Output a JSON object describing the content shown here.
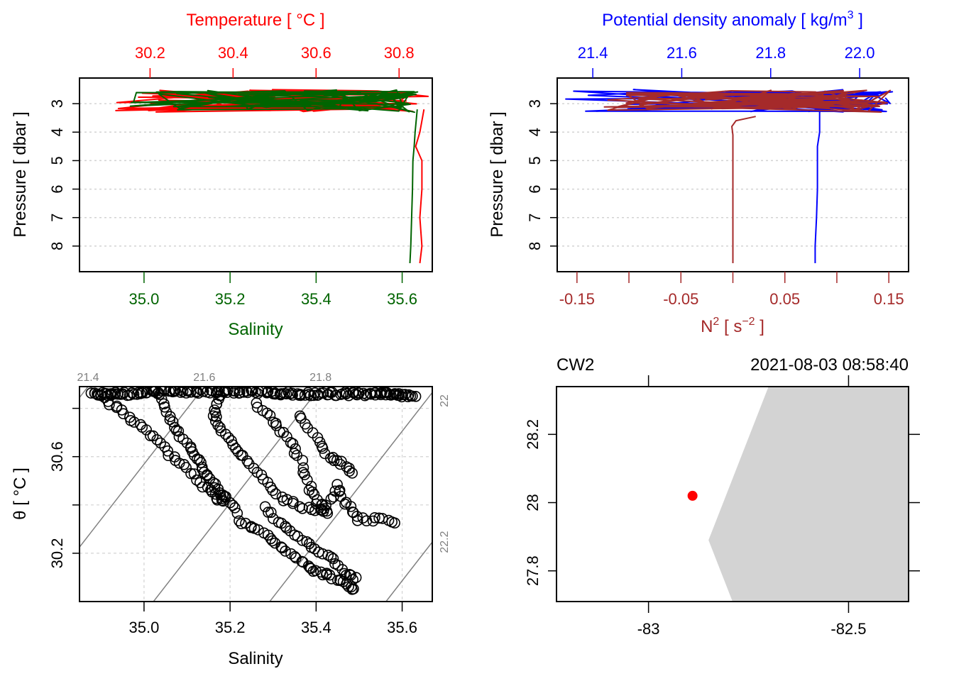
{
  "colors": {
    "temperature": "#ff0000",
    "salinity": "#006400",
    "density": "#0000ff",
    "n2": "#a52a2a",
    "grid": "#d3d3d3",
    "isopycnal": "#808080",
    "land": "#d3d3d3",
    "station": "#ff0000",
    "axis": "#000000"
  },
  "chart_data": [
    {
      "id": "salinity-temperature-profile",
      "type": "line",
      "top_axis": {
        "label": "Temperature [ °C ]",
        "ticks": [
          "30.2",
          "30.4",
          "30.6",
          "30.8"
        ],
        "range": [
          30.03,
          30.88
        ]
      },
      "bottom_axis": {
        "label": "Salinity",
        "ticks": [
          "35.0",
          "35.2",
          "35.4",
          "35.6"
        ],
        "range": [
          34.85,
          35.67
        ]
      },
      "left_axis": {
        "label": "Pressure [ dbar ]",
        "ticks": [
          "3",
          "4",
          "5",
          "6",
          "7",
          "8"
        ],
        "range": [
          2.1,
          8.9
        ],
        "reversed": true
      },
      "grid": true,
      "series": [
        {
          "name": "Temperature",
          "axis": "top",
          "surface": {
            "p_range": [
              2.5,
              3.3
            ],
            "x_range": [
              30.0,
              30.88
            ]
          },
          "deep": {
            "p": [
              3.2,
              4.0,
              4.5,
              5.0,
              6.0,
              7.0,
              8.0,
              8.6
            ],
            "x": [
              30.86,
              30.85,
              30.84,
              30.855,
              30.855,
              30.85,
              30.855,
              30.85
            ]
          }
        },
        {
          "name": "Salinity",
          "axis": "bottom",
          "surface": {
            "p_range": [
              2.5,
              3.3
            ],
            "x_range": [
              34.88,
              35.64
            ]
          },
          "deep": {
            "p": [
              3.2,
              4.0,
              4.5,
              5.0,
              6.0,
              7.0,
              8.0,
              8.6
            ],
            "x": [
              35.635,
              35.63,
              35.628,
              35.625,
              35.624,
              35.622,
              35.62,
              35.618
            ]
          }
        }
      ]
    },
    {
      "id": "density-n2-profile",
      "type": "line",
      "top_axis": {
        "label": "Potential density anomaly [ kg/m3 ]",
        "label_main": "Potential density anomaly [ kg/m",
        "label_sup": "3",
        "label_end": " ]",
        "ticks": [
          "21.4",
          "21.6",
          "21.8",
          "22.0"
        ],
        "range": [
          21.32,
          22.11
        ]
      },
      "bottom_axis": {
        "label": "N2 [ s-2 ]",
        "label_n": "N",
        "label_n_sup": "2",
        "label_mid": " [ s",
        "label_unit_sup": "−2",
        "label_end": " ]",
        "ticks": [
          "-0.15",
          "-0.05",
          "0.05",
          "0.15"
        ],
        "minor_ticks": [
          -0.1,
          0.0,
          0.1
        ],
        "range": [
          -0.169,
          0.169
        ]
      },
      "left_axis": {
        "label": "Pressure [ dbar ]",
        "ticks": [
          "3",
          "4",
          "5",
          "6",
          "7",
          "8"
        ],
        "range": [
          2.1,
          8.9
        ],
        "reversed": true
      },
      "grid": true,
      "series": [
        {
          "name": "Potential density anomaly",
          "axis": "top",
          "surface": {
            "p_range": [
              2.5,
              3.3
            ],
            "x_range": [
              21.33,
              22.08
            ]
          },
          "deep": {
            "p": [
              3.2,
              4.0,
              4.5,
              5.0,
              6.0,
              7.0,
              8.0,
              8.6
            ],
            "x": [
              21.91,
              21.91,
              21.905,
              21.905,
              21.905,
              21.903,
              21.9,
              21.9
            ]
          }
        },
        {
          "name": "N2",
          "axis": "bottom",
          "surface": {
            "p_range": [
              2.5,
              3.3
            ],
            "x_range": [
              -0.155,
              0.155
            ]
          },
          "deep": {
            "p": [
              3.45,
              3.6,
              3.8,
              4.1,
              4.5,
              5.0,
              6.0,
              7.0,
              8.0,
              8.6
            ],
            "x": [
              0.022,
              0.003,
              -0.001,
              0.0,
              0.0,
              0.0,
              0.0,
              0.0,
              0.0,
              0.0
            ]
          }
        }
      ]
    },
    {
      "id": "ts-diagram",
      "type": "scatter",
      "xlabel": "Salinity",
      "ylabel": "θ [ °C ]",
      "x_ticks": [
        "35.0",
        "35.2",
        "35.4",
        "35.6"
      ],
      "y_ticks": [
        "30.2",
        "30.6"
      ],
      "xlim": [
        34.85,
        35.67
      ],
      "ylim": [
        30.0,
        30.89
      ],
      "grid": true,
      "grid_y": [
        30.2,
        30.4,
        30.6,
        30.8
      ],
      "isopycnals": [
        {
          "label": "21.4",
          "value": 21.4,
          "label_pos": "top"
        },
        {
          "label": "21.6",
          "value": 21.6,
          "label_pos": "top"
        },
        {
          "label": "21.8",
          "value": 21.8,
          "label_pos": "top"
        },
        {
          "label": "22",
          "value": 22.0,
          "label_pos": "right"
        },
        {
          "label": "22.2",
          "value": 22.2,
          "label_pos": "right"
        }
      ],
      "isopycnal_model": {
        "ref_salinity": 35.0,
        "ref_theta": 30.6,
        "ref_sigma": 21.59,
        "dsigma_ds": 0.74,
        "dsigma_dt": -0.323
      },
      "tracks": [
        {
          "s": [
            34.9,
            34.94,
            34.98,
            35.02,
            35.06,
            35.1,
            35.14,
            35.17,
            35.19
          ],
          "t": [
            30.85,
            30.8,
            30.74,
            30.68,
            30.61,
            30.55,
            30.48,
            30.43,
            30.41
          ]
        },
        {
          "s": [
            35.04,
            35.06,
            35.08,
            35.11,
            35.13,
            35.15,
            35.17,
            35.19,
            35.22
          ],
          "t": [
            30.85,
            30.77,
            30.7,
            30.63,
            30.57,
            30.52,
            30.46,
            30.43,
            30.35
          ]
        },
        {
          "s": [
            35.18,
            35.16,
            35.17,
            35.2,
            35.23,
            35.27,
            35.31,
            35.35,
            35.4,
            35.43
          ],
          "t": [
            30.86,
            30.8,
            30.73,
            30.66,
            30.6,
            30.52,
            30.44,
            30.4,
            30.38,
            30.37
          ]
        },
        {
          "s": [
            35.26,
            35.3,
            35.33,
            35.36,
            35.38,
            35.4,
            35.42,
            35.45,
            35.47,
            35.5,
            35.55,
            35.59
          ],
          "t": [
            30.82,
            30.75,
            30.68,
            30.6,
            30.5,
            30.42,
            30.38,
            30.48,
            30.4,
            30.34,
            30.34,
            30.33
          ]
        },
        {
          "s": [
            35.22,
            35.26,
            35.3,
            35.34,
            35.38,
            35.41,
            35.44,
            35.47,
            35.49
          ],
          "t": [
            30.33,
            30.3,
            30.25,
            30.2,
            30.15,
            30.12,
            30.1,
            30.07,
            30.04
          ]
        },
        {
          "s": [
            35.28,
            35.32,
            35.36,
            35.4,
            35.44,
            35.47,
            35.5
          ],
          "t": [
            30.39,
            30.32,
            30.27,
            30.22,
            30.17,
            30.11,
            30.09
          ]
        },
        {
          "s": [
            35.36,
            35.4,
            35.43,
            35.46,
            35.49
          ],
          "t": [
            30.77,
            30.68,
            30.6,
            30.57,
            30.53
          ]
        },
        {
          "s": [
            34.88,
            34.95,
            35.05,
            35.15,
            35.25,
            35.35,
            35.45,
            35.55,
            35.63
          ],
          "t": [
            30.86,
            30.86,
            30.87,
            30.87,
            30.87,
            30.86,
            30.86,
            30.86,
            30.85
          ]
        }
      ]
    },
    {
      "id": "station-map",
      "type": "scatter",
      "station_label": "CW2",
      "timestamp": "2021-08-03 08:58:40",
      "x_ticks": [
        "-83",
        "-82.5"
      ],
      "y_ticks": [
        "27.8",
        "28",
        "28.2"
      ],
      "xlim": [
        -83.23,
        -82.35
      ],
      "ylim": [
        27.71,
        28.34
      ],
      "station": {
        "lon": -82.89,
        "lat": 28.02
      },
      "land_polygon": {
        "lon": [
          -82.7,
          -82.35,
          -82.35,
          -82.79,
          -82.85
        ],
        "lat": [
          28.34,
          28.34,
          27.71,
          27.71,
          27.89
        ]
      }
    }
  ]
}
